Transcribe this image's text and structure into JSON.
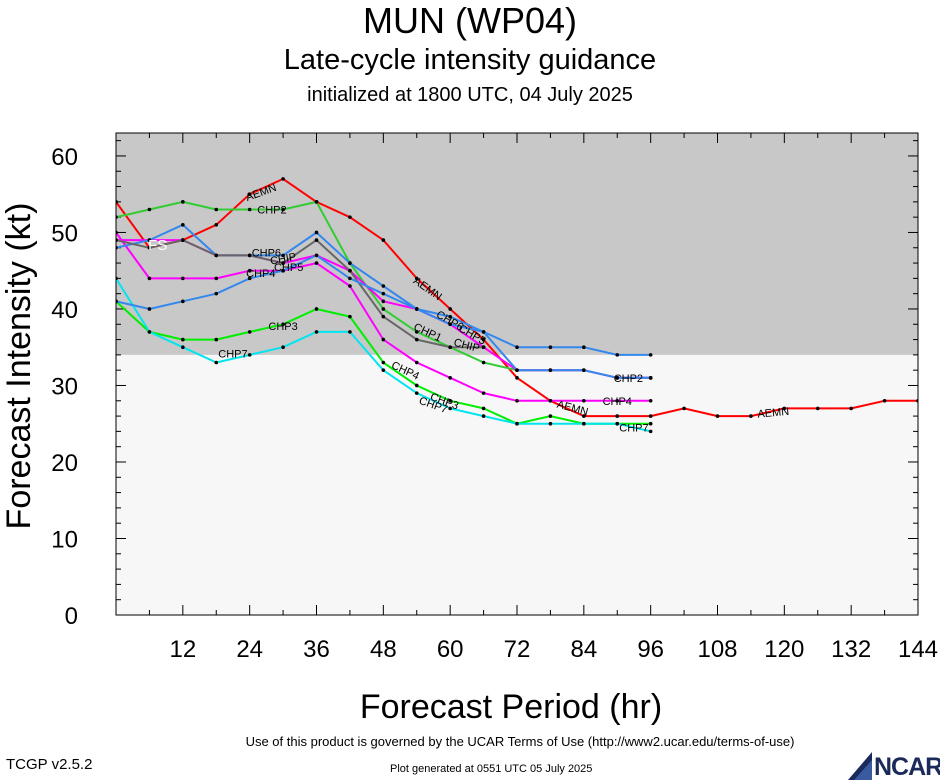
{
  "header": {
    "storm": "MUN (WP04)",
    "subtitle": "Late-cycle intensity guidance",
    "init": "initialized at 1800 UTC, 04 July 2025"
  },
  "footer": {
    "terms": "Use of this product is governed by the UCAR Terms of Use (http://www2.ucar.edu/terms-of-use)",
    "version": "TCGP v2.5.2",
    "generated": "Plot generated at 0551 UTC   05 July 2025",
    "logo": "NCAR"
  },
  "colors": {
    "shade_upper": "#c8c8c8",
    "shade_lower": "#f7f7f7",
    "AEMN": "#ff0000",
    "CHP2": "#33cc33",
    "CHP3": "#00ee00",
    "CHP4": "#ff00ff",
    "CHP5": "#ff00ff",
    "CHP6": "#3388ee",
    "CHP7": "#00e5ee",
    "CHIP": "#666666",
    "CHP1": "#3388ee"
  },
  "chart_data": {
    "type": "line",
    "title": "MUN (WP04)",
    "xlabel": "Forecast Period (hr)",
    "ylabel": "Forecast Intensity (kt)",
    "xlim": [
      0,
      144
    ],
    "ylim": [
      0,
      63
    ],
    "xticks": [
      12,
      24,
      36,
      48,
      60,
      72,
      84,
      96,
      108,
      120,
      132,
      144
    ],
    "yticks": [
      0,
      10,
      20,
      30,
      40,
      50,
      60
    ],
    "shading_threshold_kt": 34,
    "grid": false,
    "series": [
      {
        "name": "AEMN",
        "color": "#ff0000",
        "x": [
          0,
          6,
          12,
          18,
          24,
          30,
          36,
          42,
          48,
          54,
          60,
          66,
          72,
          78,
          84,
          90,
          96,
          102,
          108,
          114,
          120,
          126,
          132,
          138,
          144
        ],
        "y": [
          54,
          48,
          49,
          51,
          55,
          57,
          54,
          52,
          49,
          44,
          40,
          36,
          31,
          28,
          26,
          26,
          26,
          27,
          26,
          26,
          27,
          27,
          27,
          28,
          28
        ],
        "labels": [
          {
            "x": 26,
            "y": 55.3,
            "text": "AEMN",
            "angle": -20
          },
          {
            "x": 56,
            "y": 42.7,
            "text": "AEMN",
            "angle": 35
          },
          {
            "x": 82,
            "y": 27.1,
            "text": "AEMN",
            "angle": 15
          },
          {
            "x": 118,
            "y": 26.5,
            "text": "AEMN",
            "angle": -5
          }
        ]
      },
      {
        "name": "CHP2",
        "color": "#33cc33",
        "x": [
          0,
          6,
          12,
          18,
          24,
          30,
          36,
          42,
          48,
          54,
          60,
          66,
          72,
          78,
          84,
          90,
          96
        ],
        "y": [
          52,
          53,
          54,
          53,
          53,
          53,
          54,
          46,
          40,
          37,
          35,
          33,
          32,
          32,
          32,
          31,
          31
        ],
        "labels": [
          {
            "x": 28,
            "y": 53,
            "text": "CHP2",
            "angle": 0
          },
          {
            "x": 92,
            "y": 31,
            "text": "CHP2",
            "angle": 0
          }
        ]
      },
      {
        "name": "CHP3",
        "color": "#00ee00",
        "x": [
          0,
          6,
          12,
          18,
          24,
          30,
          36,
          42,
          48,
          54,
          60,
          66,
          72,
          78,
          84,
          90,
          96
        ],
        "y": [
          41,
          37,
          36,
          36,
          37,
          38,
          40,
          39,
          33,
          30,
          28,
          27,
          25,
          26,
          25,
          25,
          25
        ],
        "labels": [
          {
            "x": 30,
            "y": 37.8,
            "text": "CHP3",
            "angle": 0
          },
          {
            "x": 59,
            "y": 28,
            "text": "CHP3",
            "angle": 20
          }
        ]
      },
      {
        "name": "CHP4",
        "color": "#ff00ff",
        "x": [
          0,
          6,
          12,
          18,
          24,
          30,
          36,
          42,
          48,
          54,
          60,
          66,
          72,
          78,
          84,
          90,
          96
        ],
        "y": [
          50,
          44,
          44,
          44,
          45,
          45,
          46,
          43,
          36,
          33,
          31,
          29,
          28,
          28,
          28,
          28,
          28
        ],
        "labels": [
          {
            "x": 26,
            "y": 44.7,
            "text": "CHP4",
            "angle": 0
          },
          {
            "x": 52,
            "y": 32,
            "text": "CHP4",
            "angle": 25
          },
          {
            "x": 90,
            "y": 28,
            "text": "CHP4",
            "angle": 0
          }
        ]
      },
      {
        "name": "CHP5",
        "color": "#ff00ff",
        "x": [
          0,
          6,
          12,
          18,
          24,
          30,
          36,
          42,
          48,
          54,
          60,
          66,
          72,
          78,
          84,
          90,
          96
        ],
        "y": [
          49,
          49,
          49,
          47,
          47,
          46,
          47,
          45,
          41,
          40,
          38,
          35,
          32,
          32,
          32,
          31,
          31
        ],
        "labels": [
          {
            "x": 31,
            "y": 45.5,
            "text": "CHP5",
            "angle": 0
          },
          {
            "x": 64,
            "y": 36.7,
            "text": "CHP5",
            "angle": 30
          }
        ]
      },
      {
        "name": "CHP6",
        "color": "#3388ee",
        "x": [
          0,
          6,
          12,
          18,
          24,
          30,
          36,
          42,
          48,
          54,
          60,
          66,
          72,
          78,
          84,
          90,
          96
        ],
        "y": [
          48,
          49,
          51,
          47,
          47,
          47,
          50,
          46,
          43,
          40,
          38,
          37,
          35,
          35,
          35,
          34,
          34
        ],
        "labels": [
          {
            "x": 27,
            "y": 47.4,
            "text": "CHP6",
            "angle": 0
          },
          {
            "x": 60,
            "y": 38.5,
            "text": "CHP6",
            "angle": 30
          }
        ]
      },
      {
        "name": "CHP7",
        "color": "#00e5ee",
        "x": [
          0,
          6,
          12,
          18,
          24,
          30,
          36,
          42,
          48,
          54,
          60,
          66,
          72,
          78,
          84,
          90,
          96
        ],
        "y": [
          44,
          37,
          35,
          33,
          34,
          35,
          37,
          37,
          32,
          29,
          27,
          26,
          25,
          25,
          25,
          25,
          24
        ],
        "labels": [
          {
            "x": 21,
            "y": 34.2,
            "text": "CHP7",
            "angle": 0
          },
          {
            "x": 57,
            "y": 27.5,
            "text": "CHP7",
            "angle": 20
          },
          {
            "x": 93,
            "y": 24.5,
            "text": "CHP7",
            "angle": 0
          }
        ]
      },
      {
        "name": "CHIP",
        "color": "#666666",
        "x": [
          0,
          6,
          12,
          18,
          24,
          30,
          36,
          42,
          48,
          54,
          60,
          66
        ],
        "y": [
          49,
          48,
          49,
          47,
          47,
          46,
          49,
          45,
          39,
          36,
          35,
          35
        ],
        "labels": [
          {
            "x": 30,
            "y": 46.6,
            "text": "CHIP",
            "angle": -10
          },
          {
            "x": 63,
            "y": 35.3,
            "text": "CHIP",
            "angle": 15
          }
        ]
      },
      {
        "name": "CHP1",
        "color": "#3388ee",
        "x": [
          0,
          6,
          12,
          18,
          24,
          30,
          36,
          42,
          48,
          54,
          60,
          66,
          72,
          78,
          84,
          90,
          96
        ],
        "y": [
          41,
          40,
          41,
          42,
          44,
          45,
          47,
          44,
          42,
          40,
          39,
          37,
          32,
          32,
          32,
          31,
          31
        ],
        "labels": [
          {
            "x": 7.5,
            "y": 48.2,
            "text": "FS",
            "angle": 0,
            "color": "#ffffff",
            "size": 15
          },
          {
            "x": 56,
            "y": 37,
            "text": "CHP1",
            "angle": 25
          }
        ]
      }
    ]
  }
}
